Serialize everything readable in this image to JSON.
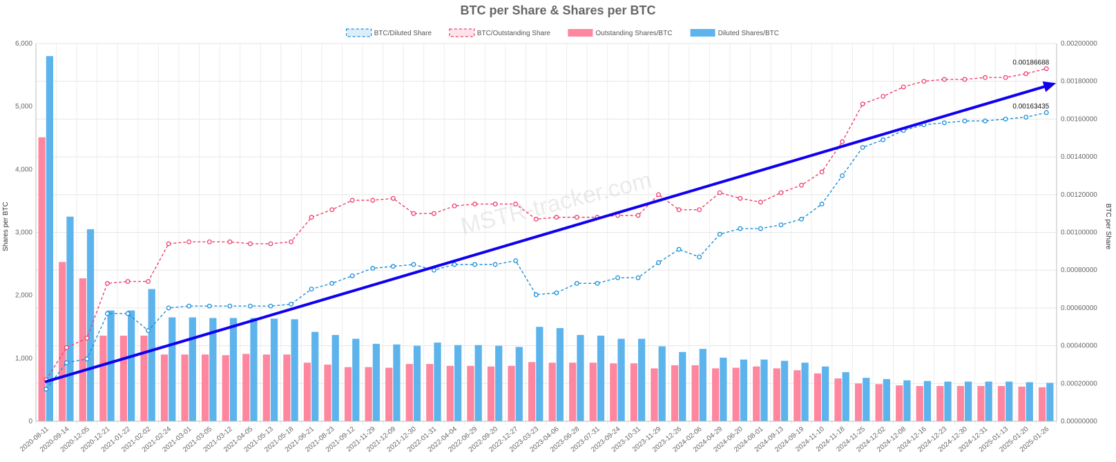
{
  "chart_data": {
    "type": "bar",
    "title": "BTC per Share & Shares per BTC",
    "watermark": "MSTR-tracker.com",
    "y_left_label": "Shares per BTC",
    "y_right_label": "BTC per Share",
    "y_left_range": [
      0,
      6000
    ],
    "y_right_range": [
      0,
      0.002
    ],
    "y_left_ticks": [
      "0",
      "1,000",
      "2,000",
      "3,000",
      "4,000",
      "5,000",
      "6,000"
    ],
    "y_right_ticks": [
      "0.00000000",
      "0.00020000",
      "0.00040000",
      "0.00060000",
      "0.00080000",
      "0.00100000",
      "0.00120000",
      "0.00140000",
      "0.00160000",
      "0.00180000",
      "0.00200000"
    ],
    "grid": true,
    "legend_position": "top-center",
    "categories": [
      "2020-08-11",
      "2020-09-14",
      "2020-12-05",
      "2020-12-21",
      "2021-01-22",
      "2021-02-02",
      "2021-02-24",
      "2021-03-01",
      "2021-03-05",
      "2021-03-12",
      "2021-04-05",
      "2021-05-13",
      "2021-05-18",
      "2021-06-21",
      "2021-08-23",
      "2021-09-12",
      "2021-11-29",
      "2021-12-09",
      "2021-12-30",
      "2022-01-31",
      "2022-04-04",
      "2022-06-29",
      "2022-09-20",
      "2022-12-27",
      "2023-03-23",
      "2023-04-06",
      "2023-06-28",
      "2023-07-31",
      "2023-09-24",
      "2023-10-31",
      "2023-11-29",
      "2023-12-26",
      "2024-02-06",
      "2024-04-29",
      "2024-06-20",
      "2024-08-01",
      "2024-09-13",
      "2024-09-19",
      "2024-11-10",
      "2024-11-18",
      "2024-11-25",
      "2024-12-02",
      "2024-12-08",
      "2024-12-16",
      "2024-12-23",
      "2024-12-30",
      "2024-12-31",
      "2025-01-13",
      "2025-01-20",
      "2025-01-26"
    ],
    "series": [
      {
        "name": "BTC/Diluted Share",
        "kind": "line",
        "axis": "right",
        "color": "#1a8fd8",
        "values": [
          0.00017,
          0.00031,
          0.00033,
          0.00057,
          0.00057,
          0.00048,
          0.0006,
          0.00061,
          0.00061,
          0.00061,
          0.00061,
          0.00061,
          0.00062,
          0.0007,
          0.00073,
          0.00077,
          0.00081,
          0.00082,
          0.00083,
          0.0008,
          0.00083,
          0.00083,
          0.00083,
          0.00085,
          0.00067,
          0.00068,
          0.00073,
          0.00073,
          0.00076,
          0.00076,
          0.00084,
          0.00091,
          0.00087,
          0.00099,
          0.00102,
          0.00102,
          0.00104,
          0.00107,
          0.00115,
          0.0013,
          0.00145,
          0.00149,
          0.00154,
          0.00157,
          0.00158,
          0.00159,
          0.00159,
          0.0016,
          0.00161,
          0.00163435
        ],
        "end_label": "0.00163435"
      },
      {
        "name": "BTC/Outstanding Share",
        "kind": "line",
        "axis": "right",
        "color": "#ee3f6b",
        "values": [
          0.00022,
          0.00039,
          0.00044,
          0.00073,
          0.00074,
          0.00074,
          0.00094,
          0.00095,
          0.00095,
          0.00095,
          0.00094,
          0.00094,
          0.00095,
          0.00108,
          0.00112,
          0.00117,
          0.00117,
          0.00118,
          0.0011,
          0.0011,
          0.00114,
          0.00115,
          0.00115,
          0.00115,
          0.00107,
          0.00108,
          0.00108,
          0.00108,
          0.00109,
          0.00109,
          0.0012,
          0.00112,
          0.00112,
          0.00121,
          0.00118,
          0.00116,
          0.00121,
          0.00125,
          0.00132,
          0.00148,
          0.00168,
          0.00172,
          0.00177,
          0.0018,
          0.00181,
          0.00181,
          0.00182,
          0.00182,
          0.00184,
          0.00186688
        ],
        "end_label": "0.00186688"
      },
      {
        "name": "Outstanding Shares/BTC",
        "kind": "bar",
        "axis": "left",
        "color": "#fe869e",
        "values": [
          4510,
          2530,
          2270,
          1360,
          1360,
          1360,
          1060,
          1060,
          1060,
          1050,
          1070,
          1060,
          1060,
          930,
          900,
          860,
          860,
          850,
          910,
          910,
          880,
          880,
          870,
          880,
          940,
          930,
          930,
          930,
          920,
          920,
          840,
          890,
          890,
          840,
          850,
          870,
          840,
          810,
          760,
          680,
          600,
          590,
          570,
          560,
          560,
          560,
          560,
          560,
          550,
          540
        ]
      },
      {
        "name": "Diluted Shares/BTC",
        "kind": "bar",
        "axis": "left",
        "color": "#5db3ec",
        "values": [
          5800,
          3250,
          3050,
          1760,
          1760,
          2100,
          1650,
          1650,
          1640,
          1640,
          1640,
          1630,
          1620,
          1420,
          1370,
          1310,
          1230,
          1220,
          1200,
          1250,
          1210,
          1210,
          1200,
          1180,
          1500,
          1480,
          1370,
          1360,
          1310,
          1310,
          1190,
          1100,
          1150,
          1010,
          980,
          980,
          960,
          930,
          870,
          780,
          690,
          670,
          650,
          640,
          630,
          630,
          630,
          630,
          620,
          610
        ]
      }
    ],
    "trend_arrow": {
      "color": "#0f00f0",
      "axis": "right",
      "start": {
        "category": "2020-08-11",
        "value": 0.00021
      },
      "end_category": "2025-01-26",
      "end_value": 0.00179
    }
  }
}
